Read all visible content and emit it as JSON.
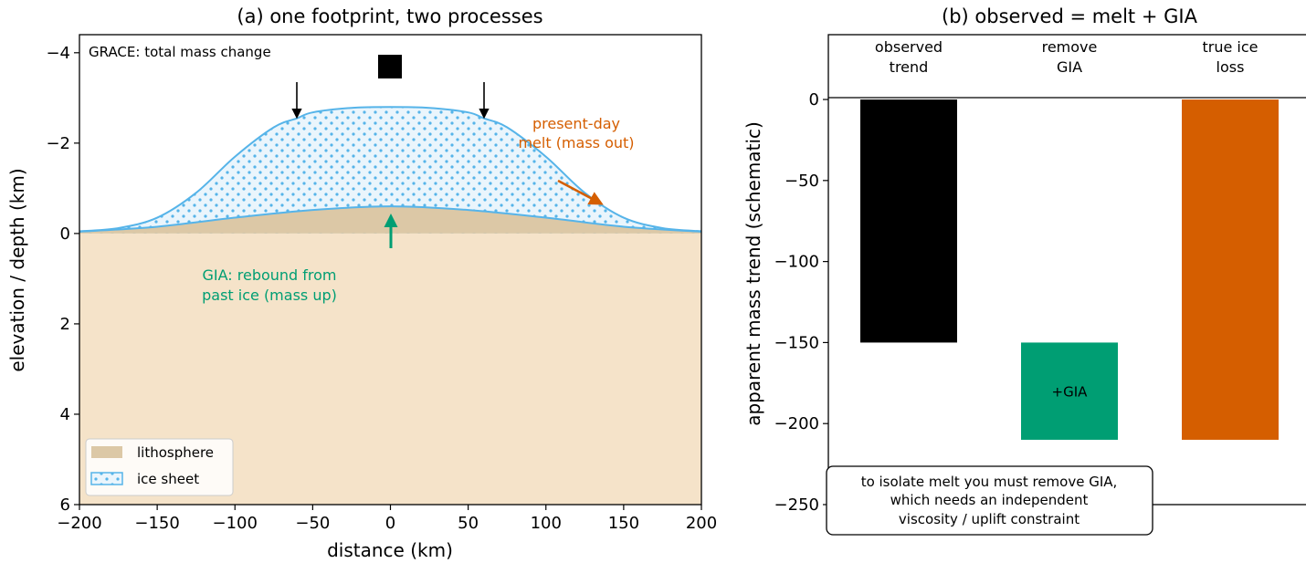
{
  "chart_data": [
    {
      "type": "area",
      "title": "(a) one footprint, two processes",
      "xlabel": "distance (km)",
      "ylabel": "elevation / depth (km)",
      "xlim": [
        -200,
        200
      ],
      "ylim": [
        6,
        -4.4
      ],
      "y_inverted": true,
      "xticks": [
        -200,
        -150,
        -100,
        -50,
        0,
        50,
        100,
        150,
        200
      ],
      "yticks": [
        -4,
        -2,
        0,
        2,
        4,
        6
      ],
      "grid": false,
      "legend_position": "lower-left",
      "series": [
        {
          "name": "lithosphere",
          "color": "#dcc8a6",
          "x": [
            -200,
            -150,
            -100,
            -50,
            0,
            50,
            100,
            150,
            200
          ],
          "y": [
            -0.04,
            -0.15,
            -0.35,
            -0.52,
            -0.6,
            -0.52,
            -0.35,
            -0.15,
            -0.04
          ]
        },
        {
          "name": "ice sheet",
          "color": "#56b4e9",
          "x": [
            -200,
            -175,
            -150,
            -125,
            -100,
            -75,
            -60,
            -50,
            -25,
            0,
            25,
            50,
            60,
            75,
            100,
            125,
            150,
            175,
            200
          ],
          "y": [
            -0.05,
            -0.12,
            -0.35,
            -0.9,
            -1.7,
            -2.35,
            -2.55,
            -2.68,
            -2.78,
            -2.8,
            -2.78,
            -2.68,
            -2.55,
            -2.35,
            -1.7,
            -0.9,
            -0.35,
            -0.12,
            -0.05
          ]
        }
      ],
      "background_fill": "#f5e3c9",
      "annotations": {
        "grace": "GRACE: total mass change",
        "melt_line1": "present-day",
        "melt_line2": "melt (mass out)",
        "gia_line1": "GIA: rebound from",
        "gia_line2": "past ice (mass up)"
      },
      "colors": {
        "melt": "#d55e00",
        "gia": "#009e73",
        "ice": "#56b4e9"
      }
    },
    {
      "type": "bar",
      "title": "(b) observed = melt + GIA",
      "ylabel": "apparent mass trend (schematic)",
      "ylim": [
        -250,
        40
      ],
      "yticks": [
        0,
        -50,
        -100,
        -150,
        -200,
        -250
      ],
      "categories": [
        "observed trend",
        "remove GIA",
        "true ice loss"
      ],
      "category_labels": [
        [
          "observed",
          "trend"
        ],
        [
          "remove",
          "GIA"
        ],
        [
          "true ice",
          "loss"
        ]
      ],
      "bars": [
        {
          "bottom": 0,
          "top": -150,
          "color": "#000000"
        },
        {
          "bottom": -150,
          "top": -210,
          "color": "#009e73",
          "label": "+GIA"
        },
        {
          "bottom": 0,
          "top": -210,
          "color": "#d55e00"
        }
      ],
      "note_lines": [
        "to isolate melt you must remove GIA,",
        "which needs an independent",
        "viscosity / uplift constraint"
      ]
    }
  ]
}
